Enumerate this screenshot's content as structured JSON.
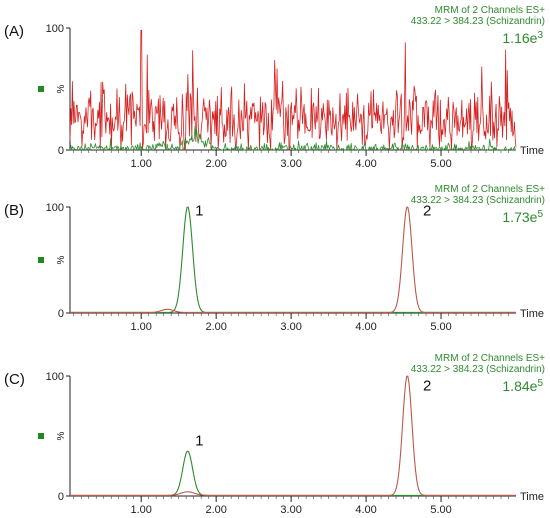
{
  "chart_data": [
    {
      "type": "line",
      "panel_label": "(A)",
      "header_line1": "MRM of 2 Channels ES+",
      "header_line2": "433.22 > 384.23 (Schizandrin)",
      "intensity_base": "1.16e",
      "intensity_exp": "3",
      "y_axis_symbol": "%",
      "ylim": [
        0,
        100
      ],
      "y_ticks": [
        "0",
        "100"
      ],
      "x_unit": "Time",
      "xlim": [
        0.05,
        6.0
      ],
      "x_ticks": [
        "1.00",
        "2.00",
        "3.00",
        "4.00",
        "5.00"
      ],
      "series": [
        {
          "color": "#d62020",
          "kind": "noise",
          "baseline": 24,
          "amp": 26,
          "seed": 7,
          "spikes": [
            [
              1.0,
              98
            ],
            [
              1.08,
              78
            ],
            [
              1.62,
              62
            ],
            [
              4.52,
              88
            ],
            [
              5.86,
              82
            ]
          ]
        },
        {
          "color": "#2e8b2e",
          "kind": "noise",
          "baseline": 1,
          "amp": 4,
          "seed": 3,
          "bumps": [
            [
              1.75,
              14,
              0.1
            ],
            [
              1.25,
              6,
              0.05
            ]
          ]
        }
      ],
      "peak_labels": []
    },
    {
      "type": "line",
      "panel_label": "(B)",
      "header_line1": "MRM of 2 Channels ES+",
      "header_line2": "433.22 > 384.23 (Schizandrin)",
      "intensity_base": "1.73e",
      "intensity_exp": "5",
      "y_axis_symbol": "%",
      "ylim": [
        0,
        100
      ],
      "y_ticks": [
        "0",
        "100"
      ],
      "x_unit": "Time",
      "xlim": [
        0.05,
        6.0
      ],
      "x_ticks": [
        "1.00",
        "2.00",
        "3.00",
        "4.00",
        "5.00"
      ],
      "series": [
        {
          "color": "#2e8b2e",
          "kind": "peaks",
          "peaks": [
            [
              1.62,
              100,
              0.065
            ]
          ]
        },
        {
          "color": "#c0584a",
          "kind": "peaks",
          "peaks": [
            [
              4.55,
              100,
              0.062
            ],
            [
              1.35,
              3,
              0.08
            ]
          ]
        }
      ],
      "peak_labels": [
        {
          "text": "1",
          "x": 1.72,
          "y": 92
        },
        {
          "text": "2",
          "x": 4.76,
          "y": 92
        }
      ]
    },
    {
      "type": "line",
      "panel_label": "(C)",
      "header_line1": "MRM of 2 Channels ES+",
      "header_line2": "433.22 > 384.23 (Schizandrin)",
      "intensity_base": "1.84e",
      "intensity_exp": "5",
      "y_axis_symbol": "%",
      "ylim": [
        0,
        100
      ],
      "y_ticks": [
        "0",
        "100"
      ],
      "x_unit": "Time",
      "xlim": [
        0.05,
        6.0
      ],
      "x_ticks": [
        "1.00",
        "2.00",
        "3.00",
        "4.00",
        "5.00"
      ],
      "series": [
        {
          "color": "#2e8b2e",
          "kind": "peaks",
          "peaks": [
            [
              1.62,
              37,
              0.065
            ]
          ]
        },
        {
          "color": "#c0584a",
          "kind": "peaks",
          "peaks": [
            [
              4.55,
              100,
              0.062
            ],
            [
              1.62,
              3,
              0.09
            ]
          ]
        }
      ],
      "peak_labels": [
        {
          "text": "1",
          "x": 1.72,
          "y": 42
        },
        {
          "text": "2",
          "x": 4.76,
          "y": 88
        }
      ]
    }
  ]
}
